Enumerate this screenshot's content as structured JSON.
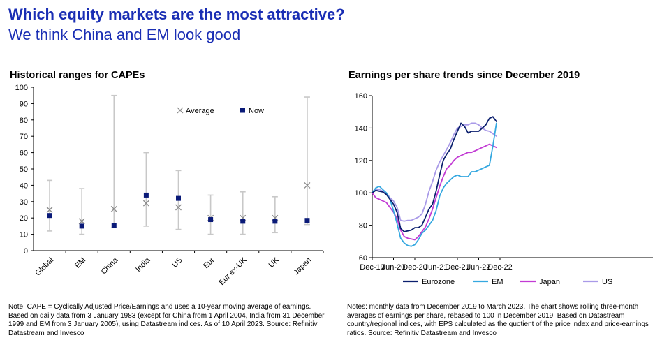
{
  "header": {
    "title": "Which equity markets are the most attractive?",
    "subtitle": "We think China and EM look good"
  },
  "left_panel": {
    "title": "Historical ranges for CAPEs",
    "note": "Note: CAPE = Cyclically Adjusted Price/Earnings and uses a 10-year moving average of earnings. Based on daily data from 3 January 1983 (except for China from 1 April 2004, India from 31 December 1999 and EM from 3 January 2005), using Datastream indices. As of 10 April 2023. Source: Refinitiv Datastream and Invesco"
  },
  "right_panel": {
    "title": "Earnings per share trends since December 2019",
    "note": "Notes: monthly data from December 2019 to March 2023. The chart shows rolling three-month averages of earnings per share, rebased to 100 in December 2019. Based on Datastream country/regional indices, with EPS calculated as the quotient of the price index and price-earnings ratios. Source: Refinitiv Datastream and Invesco"
  },
  "chart_data": [
    {
      "type": "range",
      "title": "Historical ranges for CAPEs",
      "categories": [
        "Global",
        "EM",
        "China",
        "India",
        "US",
        "Eur",
        "Eur ex-UK",
        "UK",
        "Japan"
      ],
      "min": [
        12,
        10,
        14,
        15,
        13,
        10,
        10,
        11,
        16
      ],
      "max": [
        43,
        38,
        95,
        60,
        49,
        34,
        36,
        33,
        94
      ],
      "series": [
        {
          "name": "Average",
          "marker": "x",
          "values": [
            25,
            18,
            25.5,
            29,
            26.5,
            20,
            20,
            20,
            40
          ]
        },
        {
          "name": "Now",
          "marker": "square",
          "values": [
            21.5,
            15,
            15.5,
            34,
            32,
            19,
            18,
            18,
            18.5
          ]
        }
      ],
      "yticks": [
        0,
        10,
        20,
        30,
        40,
        50,
        60,
        70,
        80,
        90,
        100
      ],
      "ylim": [
        0,
        100
      ],
      "legend": "top-center",
      "grid": false,
      "colors": {
        "range": "#c8c8c8",
        "average": "#8a8a8a",
        "now": "#0a1a78"
      }
    },
    {
      "type": "line",
      "title": "Earnings per share trends since December 2019",
      "x_labels": [
        "Dec-19",
        "Jun-20",
        "Dec-20",
        "Jun-21",
        "Dec-21",
        "Jun-22",
        "Dec-22"
      ],
      "x_start": "Dec-19",
      "ylim": [
        60,
        160
      ],
      "yticks": [
        60,
        80,
        100,
        120,
        140,
        160
      ],
      "legend": "bottom",
      "grid": false,
      "series": [
        {
          "name": "Eurozone",
          "color": "#0b1f6e",
          "values": [
            100,
            101.5,
            101,
            100.5,
            99,
            96,
            93,
            88,
            78,
            76,
            76.5,
            77,
            78.5,
            78.5,
            80,
            85,
            90,
            93,
            101,
            111,
            120,
            124,
            127,
            133,
            138,
            143,
            141,
            137,
            138,
            138,
            138,
            140,
            142,
            146,
            147,
            144
          ]
        },
        {
          "name": "EM",
          "color": "#35a8e0",
          "values": [
            100,
            103,
            104,
            102,
            100,
            96,
            89,
            81,
            72,
            69,
            67.5,
            67,
            68,
            71,
            75,
            77,
            80,
            83,
            89,
            98,
            103,
            106,
            108,
            110,
            111,
            110,
            110,
            110,
            113,
            113,
            114,
            115,
            116,
            117,
            129,
            143
          ]
        },
        {
          "name": "Japan",
          "color": "#c23bd4",
          "values": [
            100,
            97,
            96,
            95,
            94,
            91,
            88,
            84,
            77,
            73,
            72,
            71.5,
            71,
            73,
            76,
            79,
            84,
            90,
            97,
            104,
            110,
            115,
            117,
            120,
            122,
            123,
            124,
            125,
            125,
            126,
            127,
            128,
            129,
            130,
            129,
            128
          ]
        },
        {
          "name": "US",
          "color": "#a99ae8",
          "values": [
            100,
            102,
            102,
            101,
            100,
            97,
            95,
            91,
            83,
            82.5,
            83,
            83,
            84,
            85,
            87,
            93,
            101,
            107,
            114,
            119,
            123,
            127,
            131,
            136,
            140,
            141,
            142,
            142,
            143,
            143,
            142,
            140,
            138.5,
            138,
            136.5,
            135
          ]
        }
      ]
    }
  ]
}
